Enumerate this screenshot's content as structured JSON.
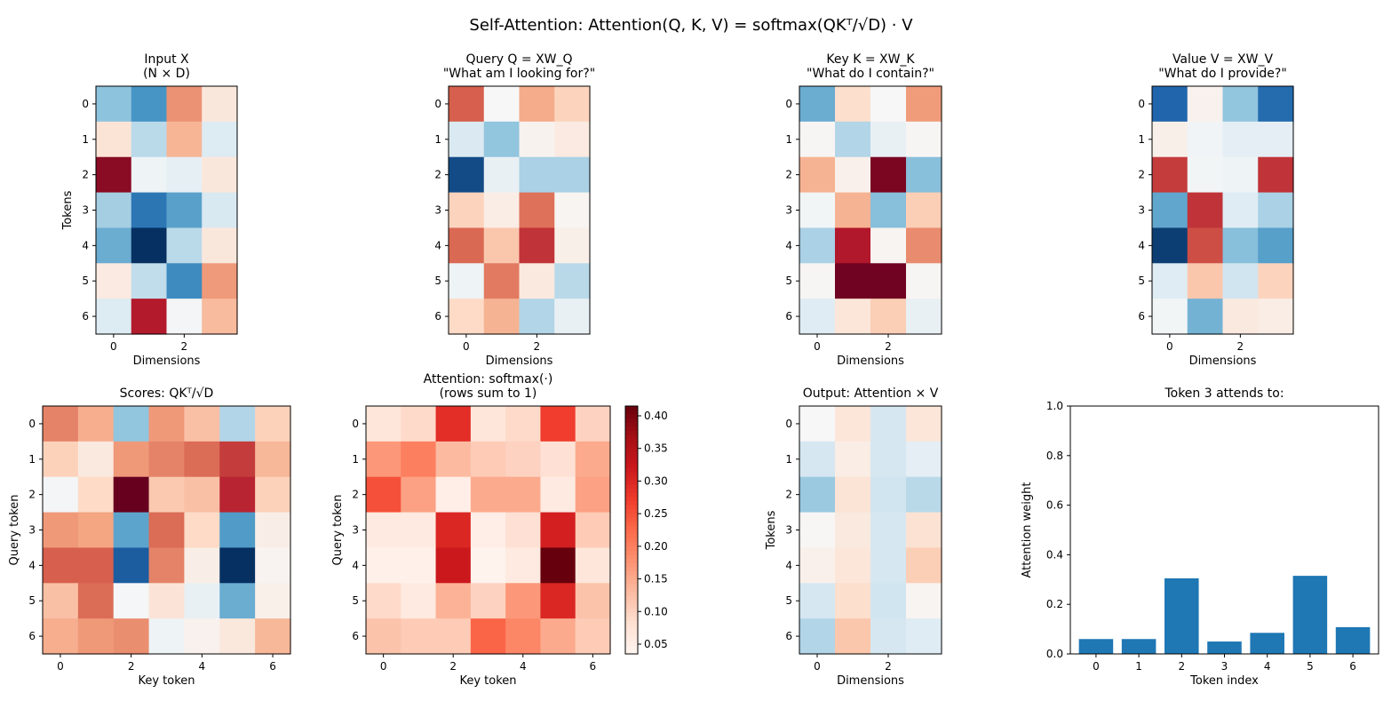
{
  "figure": {
    "title": "Self-Attention: Attention(Q, K, V) = softmax(QKᵀ/√D) · V"
  },
  "colors": {
    "diverging": [
      "#053061",
      "#2166ac",
      "#4393c3",
      "#92c5de",
      "#d1e5f0",
      "#f7f7f7",
      "#fddbc7",
      "#f4a582",
      "#d6604d",
      "#b2182b",
      "#67001f"
    ],
    "sequential": [
      "#fff5f0",
      "#fee0d2",
      "#fcbba1",
      "#fc9272",
      "#fb6a4a",
      "#ef3b2c",
      "#cb181d",
      "#a50f15",
      "#67000d"
    ],
    "bar": "#1f77b4"
  },
  "chart_data": [
    {
      "id": "input",
      "type": "heatmap",
      "title": [
        "Input X",
        "(N × D)"
      ],
      "xlabel": "Dimensions",
      "ylabel": "Tokens",
      "xticks": [
        0,
        2
      ],
      "yticks": [
        0,
        1,
        2,
        3,
        4,
        5,
        6
      ],
      "cmap": "diverging",
      "vlim": [
        -2.2,
        2.2
      ],
      "values": [
        [
          -0.9,
          -1.3,
          1.0,
          0.25
        ],
        [
          0.3,
          -0.6,
          0.75,
          -0.3
        ],
        [
          2.0,
          -0.1,
          -0.2,
          0.25
        ],
        [
          -0.75,
          -1.6,
          -1.2,
          -0.35
        ],
        [
          -1.1,
          -2.2,
          -0.6,
          0.25
        ],
        [
          0.2,
          -0.55,
          -1.4,
          0.95
        ],
        [
          -0.3,
          1.75,
          -0.05,
          0.7
        ]
      ]
    },
    {
      "id": "query",
      "type": "heatmap",
      "title": [
        "Query Q = XW_Q",
        "\"What am I looking for?\""
      ],
      "xlabel": "Dimensions",
      "ylabel": "",
      "xticks": [
        0,
        2
      ],
      "yticks": [
        0,
        1,
        2,
        3,
        4,
        5,
        6
      ],
      "cmap": "diverging",
      "vlim": [
        -2.0,
        2.0
      ],
      "values": [
        [
          1.2,
          0.0,
          0.75,
          0.45
        ],
        [
          -0.3,
          -0.8,
          0.07,
          0.18
        ],
        [
          -1.8,
          -0.15,
          -0.65,
          -0.65
        ],
        [
          0.45,
          0.15,
          1.1,
          0.05
        ],
        [
          1.15,
          0.55,
          1.45,
          0.12
        ],
        [
          -0.1,
          1.05,
          0.2,
          -0.55
        ],
        [
          0.4,
          0.7,
          -0.6,
          -0.15
        ]
      ]
    },
    {
      "id": "key",
      "type": "heatmap",
      "title": [
        "Key K = XW_K",
        "\"What do I contain?\""
      ],
      "xlabel": "Dimensions",
      "ylabel": "",
      "xticks": [
        0,
        2
      ],
      "yticks": [
        0,
        1,
        2,
        3,
        4,
        5,
        6
      ],
      "cmap": "diverging",
      "vlim": [
        -2.0,
        2.0
      ],
      "values": [
        [
          -1.0,
          0.35,
          0.0,
          0.85
        ],
        [
          0.03,
          -0.6,
          -0.15,
          0.03
        ],
        [
          0.7,
          0.1,
          1.9,
          -0.85
        ],
        [
          -0.05,
          0.7,
          -0.85,
          0.5
        ],
        [
          -0.65,
          1.6,
          0.05,
          0.95
        ],
        [
          0.03,
          1.95,
          1.95,
          0.03
        ],
        [
          -0.25,
          0.25,
          0.5,
          -0.15
        ]
      ]
    },
    {
      "id": "value",
      "type": "heatmap",
      "title": [
        "Value V = XW_V",
        "\"What do I provide?\""
      ],
      "xlabel": "Dimensions",
      "ylabel": "",
      "xticks": [
        0,
        2
      ],
      "yticks": [
        0,
        1,
        2,
        3,
        4,
        5,
        6
      ],
      "cmap": "diverging",
      "vlim": [
        -2.0,
        2.0
      ],
      "values": [
        [
          -1.6,
          0.08,
          -0.8,
          -1.55
        ],
        [
          0.12,
          -0.07,
          -0.2,
          -0.2
        ],
        [
          1.4,
          -0.05,
          -0.1,
          1.45
        ],
        [
          -1.05,
          1.45,
          -0.25,
          -0.65
        ],
        [
          -1.9,
          1.3,
          -0.85,
          -1.1
        ],
        [
          -0.25,
          0.55,
          -0.4,
          0.45
        ],
        [
          -0.05,
          -0.95,
          0.2,
          0.15
        ]
      ]
    },
    {
      "id": "scores",
      "type": "heatmap",
      "title": [
        "Scores: QKᵀ/√D"
      ],
      "xlabel": "Key token",
      "ylabel": "Query token",
      "xticks": [
        0,
        2,
        4,
        6
      ],
      "yticks": [
        0,
        1,
        2,
        3,
        4,
        5,
        6
      ],
      "cmap": "diverging",
      "vlim": [
        -1.5,
        1.5
      ],
      "values": [
        [
          0.75,
          0.55,
          -0.6,
          0.65,
          0.45,
          -0.45,
          0.35
        ],
        [
          0.35,
          0.15,
          0.65,
          0.75,
          0.85,
          1.05,
          0.5
        ],
        [
          -0.03,
          0.3,
          1.5,
          0.4,
          0.45,
          1.15,
          0.35
        ],
        [
          0.65,
          0.6,
          -0.8,
          0.85,
          0.3,
          -0.85,
          0.1
        ],
        [
          0.9,
          0.9,
          -1.25,
          0.75,
          0.1,
          -1.5,
          0.04
        ],
        [
          0.45,
          0.85,
          -0.02,
          0.2,
          -0.12,
          -0.75,
          0.08
        ],
        [
          0.55,
          0.65,
          0.7,
          -0.07,
          0.06,
          0.16,
          0.5
        ]
      ]
    },
    {
      "id": "attention",
      "type": "heatmap",
      "title": [
        "Attention: softmax(·)",
        "(rows sum to 1)"
      ],
      "xlabel": "Key token",
      "ylabel": "Query token",
      "xticks": [
        0,
        2,
        4,
        6
      ],
      "yticks": [
        0,
        1,
        2,
        3,
        4,
        5,
        6
      ],
      "cmap": "sequential",
      "vlim": [
        0.035,
        0.415
      ],
      "colorbar_ticks": [
        0.05,
        0.1,
        0.15,
        0.2,
        0.25,
        0.3,
        0.35,
        0.4
      ],
      "values": [
        [
          0.07,
          0.09,
          0.29,
          0.07,
          0.09,
          0.27,
          0.1
        ],
        [
          0.17,
          0.2,
          0.13,
          0.11,
          0.1,
          0.08,
          0.15
        ],
        [
          0.25,
          0.16,
          0.05,
          0.15,
          0.15,
          0.06,
          0.16
        ],
        [
          0.06,
          0.06,
          0.3,
          0.05,
          0.08,
          0.31,
          0.11
        ],
        [
          0.045,
          0.045,
          0.32,
          0.04,
          0.06,
          0.415,
          0.07
        ],
        [
          0.09,
          0.06,
          0.14,
          0.1,
          0.17,
          0.3,
          0.12
        ],
        [
          0.12,
          0.11,
          0.11,
          0.23,
          0.19,
          0.15,
          0.11
        ]
      ]
    },
    {
      "id": "output",
      "type": "heatmap",
      "title": [
        "Output: Attention × V"
      ],
      "xlabel": "Dimensions",
      "ylabel": "Tokens",
      "xticks": [
        0,
        2
      ],
      "yticks": [
        0,
        1,
        2,
        3,
        4,
        5,
        6
      ],
      "cmap": "diverging",
      "vlim": [
        -2.0,
        2.0
      ],
      "values": [
        [
          0.0,
          0.25,
          -0.35,
          0.25
        ],
        [
          -0.35,
          0.15,
          -0.35,
          -0.2
        ],
        [
          -0.75,
          0.28,
          -0.4,
          -0.55
        ],
        [
          0.02,
          0.2,
          -0.35,
          0.3
        ],
        [
          0.1,
          0.25,
          -0.35,
          0.5
        ],
        [
          -0.35,
          0.35,
          -0.4,
          0.05
        ],
        [
          -0.6,
          0.55,
          -0.35,
          -0.25
        ]
      ]
    },
    {
      "id": "token3",
      "type": "bar",
      "title": [
        "Token 3 attends to:"
      ],
      "xlabel": "Token index",
      "ylabel": "Attention weight",
      "categories": [
        "0",
        "1",
        "2",
        "3",
        "4",
        "5",
        "6"
      ],
      "values": [
        0.06,
        0.06,
        0.305,
        0.05,
        0.085,
        0.315,
        0.108
      ],
      "ylim": [
        0.0,
        1.0
      ],
      "yticks": [
        0.0,
        0.2,
        0.4,
        0.6,
        0.8,
        1.0
      ]
    }
  ]
}
